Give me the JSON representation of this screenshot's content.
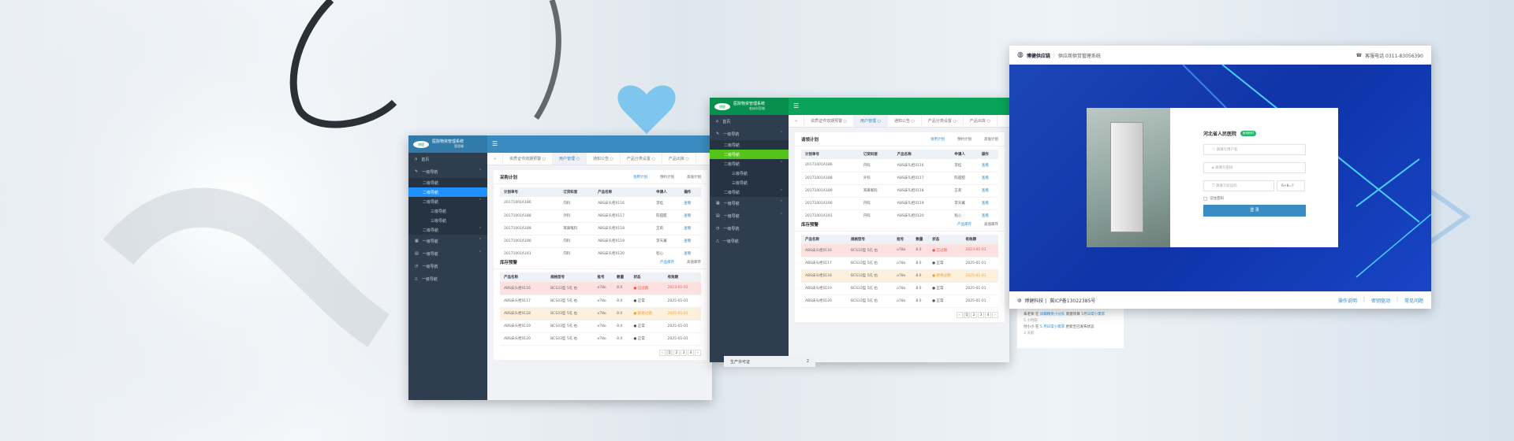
{
  "colors": {
    "left_header": "#3a8cc0",
    "left_active": "#1e90ff",
    "mid_header": "#0aa35a",
    "mid_active": "#52c41a",
    "login_blue": "#1a3fb4",
    "login_button": "#3a8cc4"
  },
  "admin": {
    "nav": [
      {
        "label": "首页",
        "level": 1,
        "icon": "home-icon"
      },
      {
        "label": "一级导航",
        "level": 1,
        "icon": "edit-icon",
        "chev": "︿"
      },
      {
        "label": "二级导航",
        "level": 2
      },
      {
        "label": "二级导航",
        "level": 2,
        "active": true
      },
      {
        "label": "二级导航",
        "level": 2,
        "chev": "︿"
      },
      {
        "label": "三级导航",
        "level": 3
      },
      {
        "label": "三级导航",
        "level": 3
      },
      {
        "label": "二级导航",
        "level": 2,
        "chev": "﹀"
      },
      {
        "label": "一级导航",
        "level": 1,
        "icon": "grid-icon",
        "chev": "﹀"
      },
      {
        "label": "一级导航",
        "level": 1,
        "icon": "table-icon",
        "chev": "﹀"
      },
      {
        "label": "一级导航",
        "level": 1,
        "icon": "clock-icon"
      },
      {
        "label": "一级导航",
        "level": 1,
        "icon": "warning-icon"
      }
    ],
    "tabs": [
      "资质证件效期预警 ○",
      "用户管理 ○",
      "通知公告 ○",
      "产品分类设置 ○",
      "产品出库 ○"
    ],
    "plan_tabs": [
      "领用计划",
      "预约计划",
      "高值计划"
    ],
    "plan_columns": [
      "计划单号",
      "订货科室",
      "产品名称",
      "申请人",
      "操作"
    ],
    "plan_rows": [
      [
        "20171001A186",
        "内科",
        "ABS床头柜0116",
        "李桂",
        "查看"
      ],
      [
        "20171001A188",
        "外科",
        "ABS床头柜0117",
        "陈甜甜",
        "查看"
      ],
      [
        "20171001A189",
        "耳鼻喉科",
        "ABS床头柜0118",
        "王莉",
        "查看"
      ],
      [
        "20171001A190",
        "内科",
        "ABS床头柜0119",
        "李天翼",
        "查看"
      ],
      [
        "20171001A191",
        "内科",
        "ABS床头柜0120",
        "程心",
        "查看"
      ]
    ],
    "stock_title": "库存预警",
    "stock_tabs": [
      "产品库存",
      "高值库存"
    ],
    "stock_columns": [
      "产品名称",
      "规格型号",
      "批号",
      "数量",
      "状态",
      "有效期"
    ],
    "stock_rows": [
      {
        "cells": [
          "ABS床头柜0116",
          "BCS33型 5孔 右",
          "o78o",
          "8.0",
          "● 已过期",
          "2023-01-01"
        ],
        "status": "bad"
      },
      {
        "cells": [
          "ABS床头柜0117",
          "BCS33型 5孔 右",
          "o78o",
          "8.0",
          "● 正常",
          "2025-01-01"
        ],
        "status": "ok"
      },
      {
        "cells": [
          "ABS床头柜0118",
          "BCS33型 5孔 右",
          "o78o",
          "8.0",
          "● 即将过期",
          "2025-01-01"
        ],
        "status": "warn"
      },
      {
        "cells": [
          "ABS床头柜0119",
          "BCS33型 5孔 右",
          "o78o",
          "8.0",
          "● 正常",
          "2025-01-01"
        ],
        "status": "ok"
      },
      {
        "cells": [
          "ABS床头柜0120",
          "BCS33型 5孔 右",
          "o78o",
          "8.0",
          "● 正常",
          "2025-01-01"
        ],
        "status": "ok"
      }
    ],
    "pager": [
      "‹",
      "1",
      "2",
      "3",
      "4",
      "›"
    ]
  },
  "mockups": [
    {
      "logo": "博健",
      "title": "医院物资管理系统",
      "subtitle": "管理端",
      "plan_title": "采购计划"
    },
    {
      "logo": "博健",
      "title": "医院物资管理系统",
      "subtitle": "临床科室端",
      "plan_title": "请领计划"
    }
  ],
  "login": {
    "brand": "博健供应链",
    "system": "供应商供货管理系统",
    "hotline": "客服电话 0311-83056390",
    "hospital": "河北省人民医院",
    "badge": "医用耗材",
    "username_placeholder": "请填写用户名",
    "password_placeholder": "请填写密码",
    "captcha_placeholder": "请填写验证码",
    "captcha": "6+8=?",
    "remember": "记住密码",
    "submit": "登 录",
    "footer_company": "博健科技 |",
    "icp": "冀ICP备13022385号",
    "links": [
      "操作说明",
      "密钥驱动",
      "常见问题"
    ]
  },
  "activity": [
    {
      "user": "朱老师",
      "at": "在",
      "proj": "凤蝶精英小分队",
      "action": "新建项目",
      "target": "5月日常小需求",
      "time": "5 小时前"
    },
    {
      "user": "付小小",
      "at": "在",
      "proj": "5 月日常小需求",
      "action": "更新至已发布状态",
      "target": "",
      "time": "3 天前"
    }
  ],
  "strip": {
    "label": "生产许可证",
    "count": "2"
  }
}
